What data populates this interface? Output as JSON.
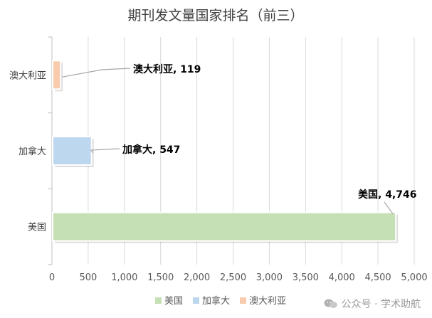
{
  "chart_data": {
    "type": "bar",
    "orientation": "horizontal",
    "title": "期刊发文量国家排名（前三）",
    "categories": [
      "美国",
      "加拿大",
      "澳大利亚"
    ],
    "values": [
      4746,
      547,
      119
    ],
    "data_labels": [
      "美国, 4,746",
      "加拿大, 547",
      "澳大利亚, 119"
    ],
    "colors": [
      "#c5e0b4",
      "#bdd7ee",
      "#f8cbad"
    ],
    "xlim": [
      0,
      5000
    ],
    "xticks": [
      0,
      500,
      1000,
      1500,
      2000,
      2500,
      3000,
      3500,
      4000,
      4500,
      5000
    ],
    "xtick_labels": [
      "0",
      "500",
      "1,000",
      "1,500",
      "2,000",
      "2,500",
      "3,000",
      "3,500",
      "4,000",
      "4,500",
      "5,000"
    ],
    "xlabel": "",
    "ylabel": "",
    "grid": "vertical",
    "legend": {
      "placement": "bottom",
      "entries": [
        {
          "label": "美国",
          "color": "#c5e0b4"
        },
        {
          "label": "加拿大",
          "color": "#bdd7ee"
        },
        {
          "label": "澳大利亚",
          "color": "#f8cbad"
        }
      ]
    }
  },
  "watermark": {
    "text": "公众号 · 学术助航",
    "icon": "wechat-icon"
  }
}
